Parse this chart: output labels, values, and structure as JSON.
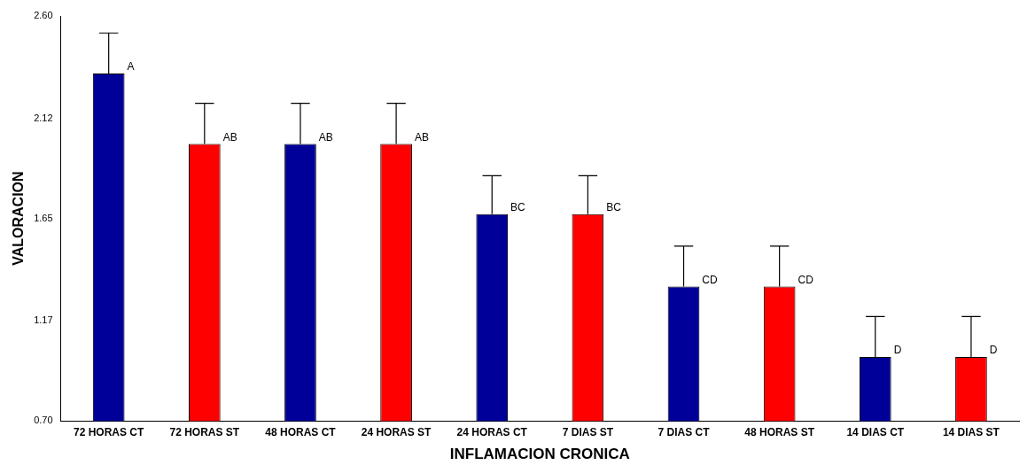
{
  "chart_data": {
    "type": "bar",
    "xlabel": "INFLAMACION CRONICA",
    "ylabel": "VALORACION",
    "categories": [
      "72 HORAS CT",
      "72 HORAS ST",
      "48 HORAS CT",
      "24 HORAS ST",
      "24 HORAS CT",
      "7 DIAS ST",
      "7 DIAS CT",
      "48 HORAS ST",
      "14 DIAS CT",
      "14 DIAS ST"
    ],
    "values": [
      2.33,
      2.0,
      2.0,
      2.0,
      1.67,
      1.67,
      1.33,
      1.33,
      1.0,
      1.0
    ],
    "colors": [
      "#000099",
      "#ff0000",
      "#000099",
      "#ff0000",
      "#000099",
      "#ff0000",
      "#000099",
      "#ff0000",
      "#000099",
      "#ff0000"
    ],
    "errors": [
      [
        2.33,
        2.52
      ],
      [
        2.0,
        2.19
      ],
      [
        2.0,
        2.19
      ],
      [
        2.0,
        2.19
      ],
      [
        1.67,
        1.85
      ],
      [
        1.67,
        1.85
      ],
      [
        1.33,
        1.52
      ],
      [
        1.33,
        1.52
      ],
      [
        1.0,
        1.19
      ],
      [
        1.0,
        1.19
      ]
    ],
    "ylim": [
      0.7,
      2.6
    ],
    "yticks": [
      {
        "value": 0.7,
        "label": "0.70"
      },
      {
        "value": 1.17,
        "label": "1.17"
      },
      {
        "value": 1.65,
        "label": "1.65"
      },
      {
        "value": 2.12,
        "label": "2.12"
      },
      {
        "value": 2.6,
        "label": "2.60"
      }
    ],
    "grid": false,
    "legend": false,
    "annotations": [
      {
        "text": "A",
        "x": "72 HORAS CT",
        "y": 2.33
      },
      {
        "text": "AB",
        "x": "72 HORAS ST",
        "y": 2.0
      },
      {
        "text": "AB",
        "x": "48 HORAS CT",
        "y": 2.0
      },
      {
        "text": "AB",
        "x": "24 HORAS ST",
        "y": 2.0
      },
      {
        "text": "BC",
        "x": "24 HORAS CT",
        "y": 1.67
      },
      {
        "text": "BC",
        "x": "7 DIAS ST",
        "y": 1.67
      },
      {
        "text": "CD",
        "x": "7 DIAS CT",
        "y": 1.33
      },
      {
        "text": "CD",
        "x": "48 HORAS ST",
        "y": 1.33
      },
      {
        "text": "D",
        "x": "14 DIAS CT",
        "y": 1.0
      },
      {
        "text": "D",
        "x": "14 DIAS ST",
        "y": 1.0
      }
    ]
  }
}
